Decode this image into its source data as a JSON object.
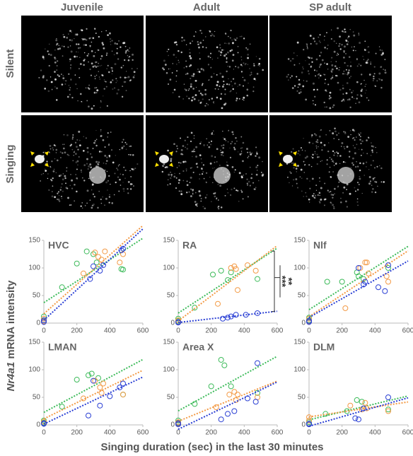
{
  "images": {
    "column_labels": [
      "Juvenile",
      "Adult",
      "SP adult"
    ],
    "row_labels": [
      "Silent",
      "Singing"
    ]
  },
  "axis_labels": {
    "y_italic": "Nr4a1",
    "y_rest": " mRNA intensity",
    "x": "Singing duration (sec) in the last 30 minutes"
  },
  "chart_data": [
    {
      "type": "scatter",
      "title": "HVC",
      "xlim": [
        0,
        600
      ],
      "ylim": [
        0,
        150
      ],
      "xticks": [
        0,
        200,
        400,
        600
      ],
      "yticks": [
        0,
        50,
        100,
        150
      ],
      "trendlines": true,
      "series": [
        {
          "color": "#3dbb5a",
          "x": [
            0,
            0,
            110,
            200,
            260,
            300,
            320,
            470,
            480
          ],
          "values": [
            12,
            5,
            65,
            108,
            130,
            125,
            110,
            98,
            97
          ]
        },
        {
          "color": "#f39a45",
          "x": [
            0,
            0,
            240,
            310,
            330,
            350,
            370,
            460,
            480
          ],
          "values": [
            8,
            3,
            90,
            128,
            120,
            115,
            130,
            110,
            125
          ]
        },
        {
          "color": "#2a3fd4",
          "x": [
            0,
            0,
            280,
            300,
            340,
            360,
            470,
            480
          ],
          "values": [
            5,
            2,
            80,
            103,
            95,
            105,
            132,
            135
          ]
        }
      ]
    },
    {
      "type": "scatter",
      "title": "RA",
      "xlim": [
        0,
        600
      ],
      "ylim": [
        0,
        150
      ],
      "xticks": [
        0,
        200,
        400,
        600
      ],
      "yticks": [
        0,
        50,
        100,
        150
      ],
      "trendlines": true,
      "annotations": [
        "***",
        "**"
      ],
      "series": [
        {
          "color": "#3dbb5a",
          "x": [
            0,
            0,
            100,
            210,
            260,
            300,
            320,
            480
          ],
          "values": [
            8,
            4,
            28,
            88,
            95,
            78,
            92,
            80
          ]
        },
        {
          "color": "#f39a45",
          "x": [
            0,
            0,
            240,
            320,
            340,
            350,
            360,
            420,
            470
          ],
          "values": [
            5,
            2,
            35,
            100,
            103,
            98,
            60,
            105,
            95
          ]
        },
        {
          "color": "#2a3fd4",
          "x": [
            0,
            0,
            270,
            300,
            320,
            350,
            410,
            480
          ],
          "values": [
            2,
            1,
            8,
            10,
            12,
            15,
            15,
            18
          ]
        }
      ]
    },
    {
      "type": "scatter",
      "title": "Nlf",
      "xlim": [
        0,
        600
      ],
      "ylim": [
        0,
        150
      ],
      "xticks": [
        0,
        200,
        400,
        600
      ],
      "yticks": [
        0,
        50,
        100,
        150
      ],
      "trendlines": true,
      "series": [
        {
          "color": "#3dbb5a",
          "x": [
            0,
            0,
            110,
            200,
            290,
            300,
            330,
            480
          ],
          "values": [
            10,
            5,
            75,
            75,
            92,
            85,
            80,
            100
          ]
        },
        {
          "color": "#f39a45",
          "x": [
            0,
            0,
            220,
            310,
            340,
            350,
            360,
            470,
            480
          ],
          "values": [
            8,
            3,
            27,
            100,
            110,
            110,
            90,
            85,
            75
          ]
        },
        {
          "color": "#2a3fd4",
          "x": [
            0,
            0,
            300,
            330,
            340,
            420,
            460,
            480
          ],
          "values": [
            4,
            2,
            100,
            70,
            75,
            65,
            58,
            105
          ]
        }
      ]
    },
    {
      "type": "scatter",
      "title": "LMAN",
      "xlim": [
        0,
        600
      ],
      "ylim": [
        0,
        150
      ],
      "xticks": [
        0,
        200,
        400,
        600
      ],
      "yticks": [
        0,
        50,
        100,
        150
      ],
      "trendlines": true,
      "series": [
        {
          "color": "#3dbb5a",
          "x": [
            0,
            0,
            110,
            200,
            270,
            290,
            330,
            480
          ],
          "values": [
            8,
            4,
            33,
            82,
            90,
            93,
            85,
            55
          ]
        },
        {
          "color": "#f39a45",
          "x": [
            0,
            0,
            240,
            310,
            340,
            350,
            360,
            480
          ],
          "values": [
            6,
            3,
            48,
            80,
            68,
            58,
            75,
            55
          ]
        },
        {
          "color": "#2a3fd4",
          "x": [
            0,
            0,
            270,
            300,
            340,
            400,
            460,
            480
          ],
          "values": [
            3,
            2,
            17,
            80,
            35,
            52,
            68,
            75
          ]
        }
      ]
    },
    {
      "type": "scatter",
      "title": "Area X",
      "xlim": [
        0,
        600
      ],
      "ylim": [
        0,
        150
      ],
      "xticks": [
        0,
        200,
        400,
        600
      ],
      "yticks": [
        0,
        50,
        100,
        150
      ],
      "trendlines": true,
      "series": [
        {
          "color": "#3dbb5a",
          "x": [
            0,
            0,
            100,
            200,
            260,
            280,
            320,
            480
          ],
          "values": [
            8,
            4,
            38,
            70,
            118,
            108,
            70,
            58
          ]
        },
        {
          "color": "#f39a45",
          "x": [
            0,
            0,
            230,
            310,
            340,
            350,
            360,
            480
          ],
          "values": [
            5,
            2,
            32,
            55,
            60,
            45,
            55,
            50
          ]
        },
        {
          "color": "#2a3fd4",
          "x": [
            0,
            0,
            260,
            300,
            340,
            420,
            470,
            480
          ],
          "values": [
            3,
            1,
            10,
            20,
            25,
            48,
            42,
            112
          ]
        }
      ]
    },
    {
      "type": "scatter",
      "title": "DLM",
      "xlim": [
        0,
        600
      ],
      "ylim": [
        0,
        150
      ],
      "xticks": [
        0,
        200,
        400,
        600
      ],
      "yticks": [
        0,
        50,
        100,
        150
      ],
      "trendlines": true,
      "series": [
        {
          "color": "#3dbb5a",
          "x": [
            0,
            0,
            100,
            230,
            290,
            320,
            480
          ],
          "values": [
            5,
            2,
            20,
            25,
            45,
            42,
            28
          ]
        },
        {
          "color": "#f39a45",
          "x": [
            0,
            0,
            250,
            320,
            340,
            350,
            480
          ],
          "values": [
            14,
            8,
            35,
            28,
            40,
            30,
            25
          ]
        },
        {
          "color": "#2a3fd4",
          "x": [
            0,
            0,
            280,
            300,
            330,
            480
          ],
          "values": [
            2,
            1,
            12,
            10,
            30,
            50
          ]
        }
      ]
    }
  ]
}
